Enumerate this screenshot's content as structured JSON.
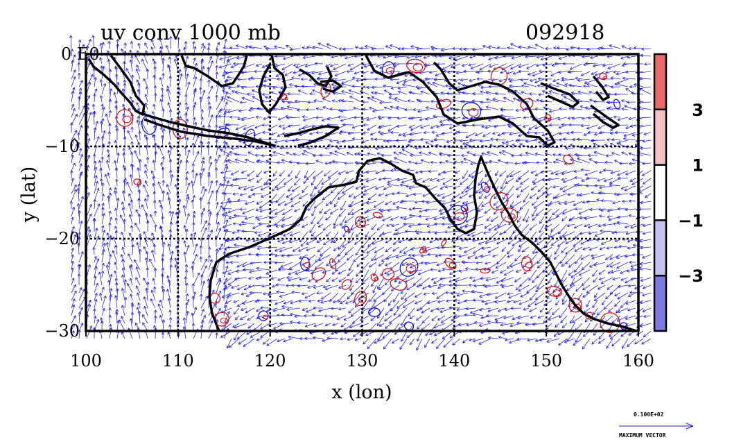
{
  "title": {
    "left": "uv conv 1000 mb",
    "right": "092918"
  },
  "origin_label": "0 E0",
  "x_axis": {
    "label": "x (lon)",
    "range": [
      100,
      160
    ],
    "ticks": [
      "100",
      "110",
      "120",
      "130",
      "140",
      "150",
      "160"
    ]
  },
  "y_axis": {
    "label": "y (lat)",
    "range": [
      -30,
      0
    ],
    "ticks": [
      "−30",
      "−20",
      "−10"
    ]
  },
  "colorbar": {
    "labels": [
      "3",
      "1",
      "−1",
      "−3"
    ],
    "bands": [
      {
        "color": "#e86a6a",
        "from": 5,
        "to": 3
      },
      {
        "color": "#f4c2c2",
        "from": 3,
        "to": 1
      },
      {
        "color": "#ffffff",
        "from": 1,
        "to": -1
      },
      {
        "color": "#c2c2f0",
        "from": -1,
        "to": -3
      },
      {
        "color": "#7a7ae0",
        "from": -3,
        "to": -5
      }
    ]
  },
  "legend": {
    "vector_value": "0.100E+02",
    "vector_caption": "MAXIMUM VECTOR"
  },
  "colors": {
    "vector": "#1f1fe6",
    "pos_contour": "#e01010",
    "neg_contour": "#1010e0",
    "coast": "#000000",
    "grid": "#000000"
  }
}
